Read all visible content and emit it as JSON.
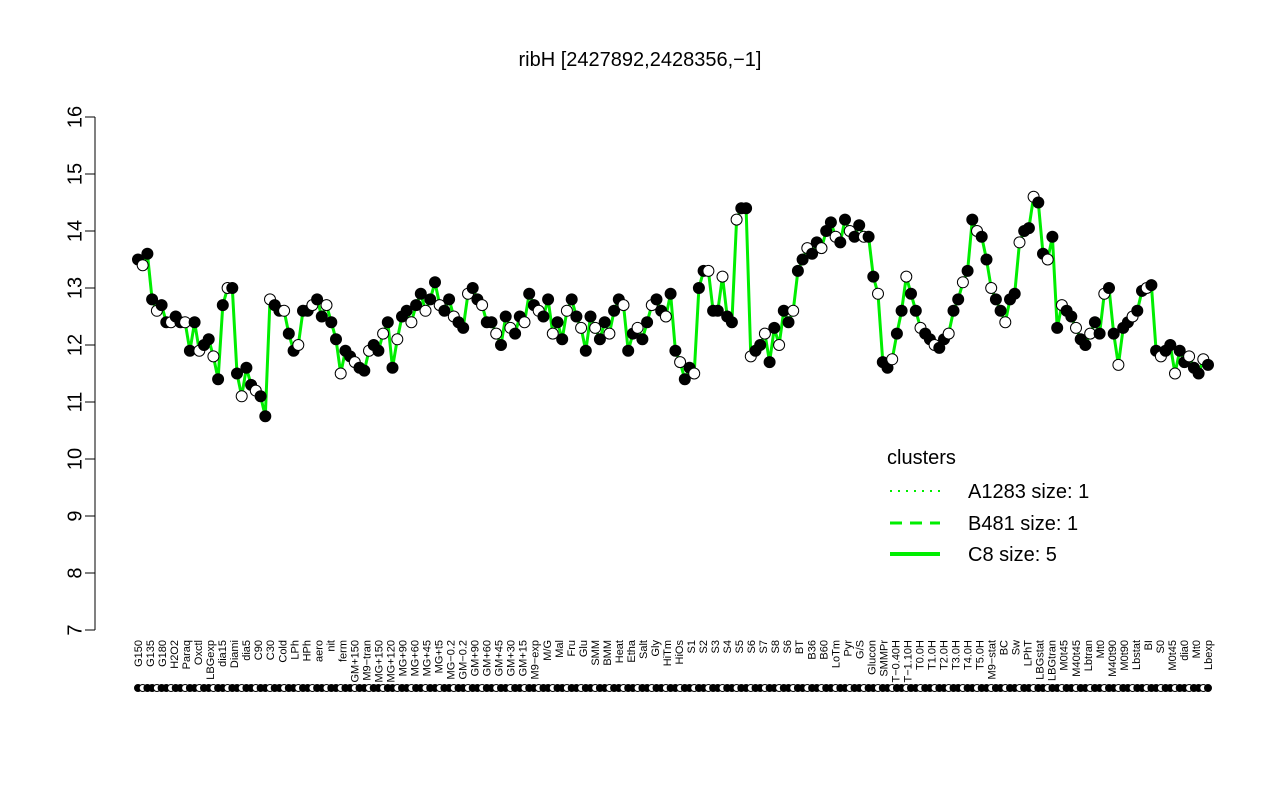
{
  "chart_data": {
    "type": "scatter",
    "title": "ribH [2427892,2428356,−1]",
    "xlabel": "",
    "ylabel": "",
    "ylim": [
      7,
      16
    ],
    "yticks": [
      "7",
      "8",
      "9",
      "10",
      "11",
      "12",
      "13",
      "14",
      "15",
      "16"
    ],
    "grid": false,
    "xlabels": [
      "G150",
      "G135",
      "G180",
      "H2O2",
      "Paraq",
      "Oxctl",
      "LBGexp",
      "dia15",
      "Diami",
      "dia5",
      "C90",
      "C30",
      "Cold",
      "LPh",
      "HPh",
      "aero",
      "nit",
      "ferm",
      "GM+150",
      "M9−tran",
      "MG+150",
      "MG+120",
      "MG+90",
      "MG+60",
      "MG+45",
      "MG+t5",
      "MG−0.2",
      "GM−0.2",
      "GM+90",
      "GM+60",
      "GM+45",
      "GM+30",
      "GM+15",
      "M9−exp",
      "M/G",
      "Mal",
      "Fru",
      "Glu",
      "SMM",
      "BMM",
      "Heat",
      "Etha",
      "Salt",
      "Gly",
      "HiTm",
      "HiOs",
      "S1",
      "S2",
      "S3",
      "S4",
      "S5",
      "S6",
      "S7",
      "S8",
      "S6",
      "BT",
      "B36",
      "B60",
      "LoTm",
      "Pyr",
      "G/S",
      "Glucon",
      "SMMPr",
      "T−0.40H",
      "T−1.10H",
      "T0.0H",
      "T1.0H",
      "T2.0H",
      "T3.0H",
      "T4.0H",
      "T5.0H",
      "M9−stat",
      "BC",
      "Sw",
      "LPhT",
      "LBGstat",
      "LBGtran",
      "M0t45",
      "M40t45",
      "Lbtran",
      "Mt0",
      "M40t90",
      "M0t90",
      "Lbstat",
      "BI",
      "S0",
      "M0t45",
      "dia0",
      "Mt0",
      "Lbexp"
    ],
    "legend": {
      "title": "clusters",
      "position": "right",
      "entries": [
        {
          "label": "A1283 size: 1",
          "style": "dotted"
        },
        {
          "label": "B481 size: 1",
          "style": "dashed"
        },
        {
          "label": "C8 size: 5",
          "style": "solid"
        }
      ]
    },
    "colors": {
      "series_line": "#00ee00",
      "marker_filled": "#000000",
      "marker_open": "#ffffff",
      "legend_text": "#00ee00"
    },
    "series": [
      {
        "values": [
          13.5,
          13.4,
          13.6,
          12.8,
          12.6,
          12.7,
          12.4,
          12.4,
          12.5,
          12.4,
          12.4,
          11.9,
          12.4,
          11.9,
          12.0,
          12.1,
          11.8,
          11.4,
          12.7,
          13.0,
          13.0,
          11.5,
          11.1,
          11.6,
          11.3,
          11.2,
          11.1,
          10.75,
          12.8,
          12.7,
          12.6,
          12.6,
          12.2,
          11.9,
          12.0,
          12.6,
          12.6,
          12.7,
          12.8,
          12.5,
          12.7,
          12.4,
          12.1,
          11.5,
          11.9,
          11.8,
          11.7,
          11.6,
          11.55,
          11.9,
          12.0,
          11.9,
          12.2,
          12.4,
          11.6,
          12.1,
          12.5,
          12.6,
          12.4,
          12.7,
          12.9,
          12.6,
          12.8,
          13.1,
          12.7,
          12.6,
          12.8,
          12.5,
          12.4,
          12.3,
          12.9,
          13.0,
          12.8,
          12.7,
          12.4,
          12.4,
          12.2,
          12.0,
          12.5,
          12.3,
          12.2,
          12.5,
          12.4,
          12.9,
          12.7,
          12.6,
          12.5,
          12.8,
          12.2,
          12.4,
          12.1,
          12.6,
          12.8,
          12.5,
          12.3,
          11.9,
          12.5,
          12.3,
          12.1,
          12.4,
          12.2,
          12.6,
          12.8,
          12.7,
          11.9,
          12.2,
          12.3,
          12.1,
          12.4,
          12.7,
          12.8,
          12.6,
          12.5,
          12.9,
          11.9,
          11.7,
          11.4,
          11.6,
          11.5,
          13.0,
          13.3,
          13.3,
          12.6,
          12.6,
          13.2,
          12.5,
          12.4,
          14.2,
          14.4,
          14.4,
          11.8,
          11.9,
          12.0,
          12.2,
          11.7,
          12.3,
          12.0,
          12.6,
          12.4,
          12.6,
          13.3,
          13.5,
          13.7,
          13.6,
          13.8,
          13.7,
          14.0,
          14.15,
          13.9,
          13.8,
          14.2,
          14.0,
          13.9,
          14.1,
          13.9,
          13.9,
          13.2,
          12.9,
          11.7,
          11.6,
          11.75,
          12.2,
          12.6,
          13.2,
          12.9,
          12.6,
          12.3,
          12.2,
          12.1,
          12.0,
          11.95,
          12.1,
          12.2,
          12.6,
          12.8,
          13.1,
          13.3,
          14.2,
          14.0,
          13.9,
          13.5,
          13.0,
          12.8,
          12.6,
          12.4,
          12.8,
          12.9,
          13.8,
          14.0,
          14.05,
          14.6,
          14.5,
          13.6,
          13.5,
          13.9,
          12.3,
          12.7,
          12.6,
          12.5,
          12.3,
          12.1,
          12.0,
          12.2,
          12.4,
          12.2,
          12.9,
          13.0,
          12.2,
          11.65,
          12.3,
          12.4,
          12.5,
          12.6,
          12.95,
          13.0,
          13.05,
          11.9,
          11.8,
          11.9,
          12.0,
          11.5,
          11.9,
          11.7,
          11.8,
          11.6,
          11.5,
          11.75,
          11.65
        ]
      }
    ]
  }
}
